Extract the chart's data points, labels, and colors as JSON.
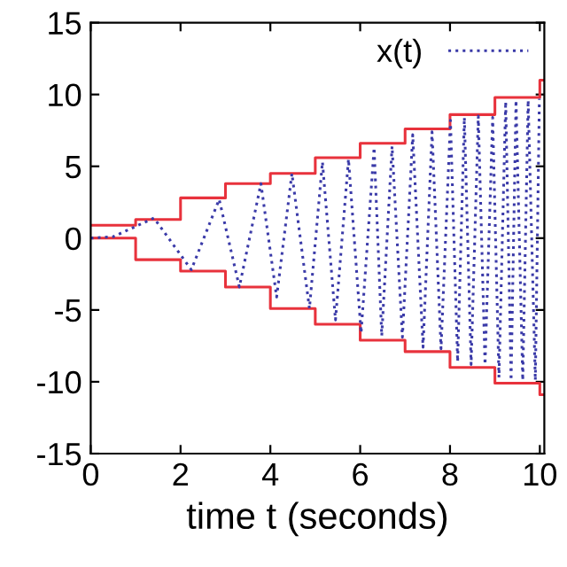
{
  "chart_data": {
    "type": "line",
    "xlabel": "time t (seconds)",
    "xlim": [
      0,
      10.1
    ],
    "xticks": [
      0,
      2,
      4,
      6,
      8,
      10
    ],
    "ylim": [
      -15,
      15
    ],
    "yticks": [
      -15,
      -10,
      -5,
      0,
      5,
      10,
      15
    ],
    "grid": false,
    "legend": "top right",
    "series": [
      {
        "type": "step",
        "color": "#e8323c",
        "line_style": "solid",
        "x": [
          0,
          1,
          2,
          3,
          4,
          5,
          6,
          7,
          8,
          9,
          10,
          10.1
        ],
        "values": [
          0.9,
          1.3,
          2.8,
          3.8,
          4.5,
          5.6,
          6.6,
          7.6,
          8.6,
          9.8,
          11,
          11
        ]
      },
      {
        "type": "step",
        "color": "#e8323c",
        "line_style": "solid",
        "x": [
          0,
          1,
          2,
          3,
          4,
          5,
          6,
          7,
          8,
          9,
          10,
          10.1
        ],
        "values": [
          0,
          -1.5,
          -2.3,
          -3.4,
          -4.9,
          -6,
          -7.1,
          -7.9,
          -9,
          -10.1,
          -10.9,
          -10.9
        ]
      },
      {
        "name": "x(t)",
        "color": "#3a3aa8",
        "line_style": "dotted",
        "x": [
          0,
          0.5,
          1.41,
          2.24,
          2.86,
          3.31,
          3.79,
          4.14,
          4.48,
          4.87,
          5.16,
          5.45,
          5.74,
          6.02,
          6.31,
          6.48,
          6.71,
          6.94,
          7.17,
          7.4,
          7.6,
          7.8,
          8.01,
          8.17,
          8.32,
          8.47,
          8.63,
          8.78,
          8.95,
          9.09,
          9.24,
          9.36,
          9.47,
          9.62,
          9.74,
          9.9,
          9.99
        ],
        "values": [
          0,
          0.1,
          1.4,
          -2.2,
          2.7,
          -3.4,
          3.8,
          -4.1,
          4.5,
          -4.9,
          5.3,
          -5.7,
          5.5,
          -6.6,
          6.3,
          -6.8,
          6.4,
          -6.9,
          7.2,
          -7.6,
          7.4,
          -7.7,
          8.2,
          -8.6,
          8.4,
          -8.8,
          8.5,
          -8.8,
          8.4,
          -9.7,
          9.5,
          -9.9,
          9.6,
          -9.9,
          9.6,
          -9.9,
          9.7
        ]
      }
    ]
  }
}
